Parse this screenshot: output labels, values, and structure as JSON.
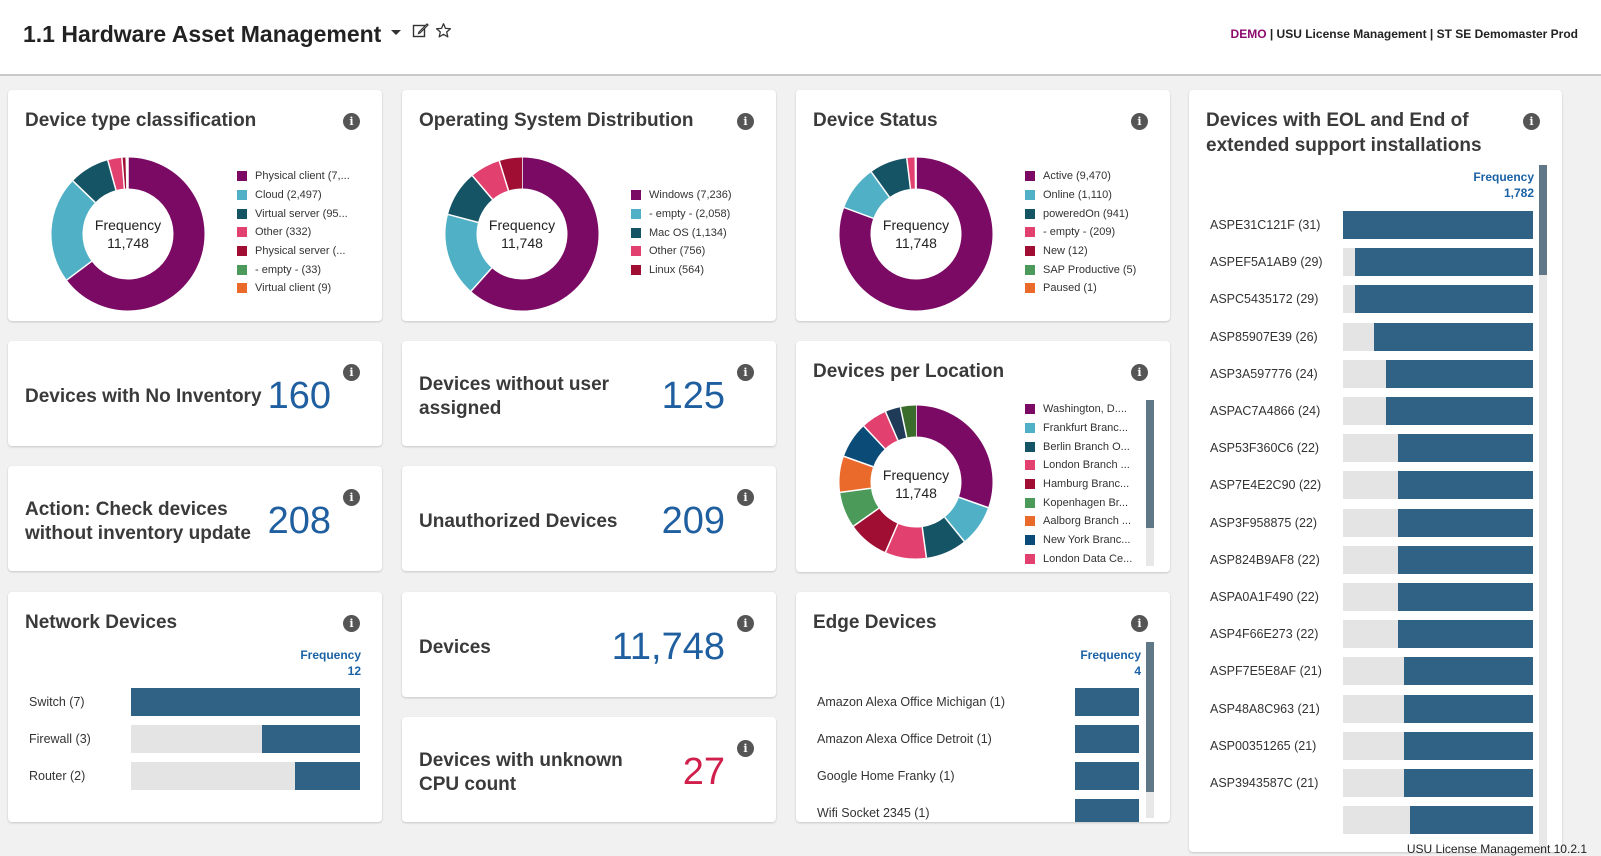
{
  "header": {
    "title": "1.1 Hardware Asset Management",
    "env_demo": "DEMO",
    "env_rest": " | USU License Management | ST SE Demomaster Prod",
    "icons": [
      "chevron-down-icon",
      "edit-icon",
      "star-icon"
    ]
  },
  "footer": "USU License Management 10.2.1",
  "device_type": {
    "title": "Device type classification",
    "center_label": "Frequency",
    "center_value": "11,748",
    "legend": [
      "Physical client (7,...",
      "Cloud (2,497)",
      "Virtual server (95...",
      "Other (332)",
      "Physical server (...",
      "- empty - (33)",
      "Virtual client (9)"
    ]
  },
  "os_dist": {
    "title": "Operating System Distribution",
    "center_label": "Frequency",
    "center_value": "11,748",
    "legend": [
      "Windows (7,236)",
      "- empty - (2,058)",
      "Mac OS (1,134)",
      "Other (756)",
      "Linux (564)"
    ]
  },
  "device_status": {
    "title": "Device Status",
    "center_label": "Frequency",
    "center_value": "11,748",
    "legend": [
      "Active (9,470)",
      "Online (1,110)",
      "poweredOn (941)",
      "- empty - (209)",
      "New (12)",
      "SAP Productive (5)",
      "Paused (1)"
    ]
  },
  "location": {
    "title": "Devices per Location",
    "center_label": "Frequency",
    "center_value": "11,748",
    "legend": [
      "Washington, D....",
      "Frankfurt Branc...",
      "Berlin Branch O...",
      "London Branch ...",
      "Hamburg Branc...",
      "Kopenhagen Br...",
      "Aalborg Branch ...",
      "New York Branc...",
      "London Data Ce..."
    ]
  },
  "kpis": {
    "no_inventory": {
      "label": "Devices with No Inventory",
      "value": "160"
    },
    "no_user": {
      "label_1": "Devices without user",
      "label_2": "assigned",
      "value": "125"
    },
    "check_inventory": {
      "label_1": "Action: Check devices",
      "label_2": "without inventory update",
      "value": "208"
    },
    "unauthorized": {
      "label": "Unauthorized Devices",
      "value": "209"
    },
    "devices": {
      "label": "Devices",
      "value": "11,748"
    },
    "unknown_cpu": {
      "label_1": "Devices with unknown",
      "label_2": "CPU count",
      "value": "27"
    }
  },
  "network": {
    "title": "Network Devices",
    "freq_label": "Frequency",
    "freq_total": "12",
    "rows": [
      {
        "label": "Switch (7)",
        "value": 7
      },
      {
        "label": "Firewall (3)",
        "value": 3
      },
      {
        "label": "Router (2)",
        "value": 2
      }
    ]
  },
  "edge": {
    "title": "Edge Devices",
    "freq_label": "Frequency",
    "freq_total": "4",
    "rows": [
      {
        "label": "Amazon Alexa Office Michigan (1)",
        "value": 1
      },
      {
        "label": "Amazon Alexa Office Detroit (1)",
        "value": 1
      },
      {
        "label": "Google Home Franky (1)",
        "value": 1
      },
      {
        "label": "Wifi Socket 2345 (1)",
        "value": 1
      }
    ]
  },
  "eol": {
    "title_1": "Devices with EOL and End of",
    "title_2": "extended support installations",
    "freq_label": "Frequency",
    "freq_total": "1,782",
    "rows": [
      {
        "label": "ASPE31C121F (31)",
        "value": 31
      },
      {
        "label": "ASPEF5A1AB9 (29)",
        "value": 29
      },
      {
        "label": "ASPC5435172 (29)",
        "value": 29
      },
      {
        "label": "ASP85907E39 (26)",
        "value": 26
      },
      {
        "label": "ASP3A597776 (24)",
        "value": 24
      },
      {
        "label": "ASPAC7A4866 (24)",
        "value": 24
      },
      {
        "label": "ASP53F360C6 (22)",
        "value": 22
      },
      {
        "label": "ASP7E4E2C90 (22)",
        "value": 22
      },
      {
        "label": "ASP3F958875 (22)",
        "value": 22
      },
      {
        "label": "ASP824B9AF8 (22)",
        "value": 22
      },
      {
        "label": "ASPA0A1F490 (22)",
        "value": 22
      },
      {
        "label": "ASP4F66E273 (22)",
        "value": 22
      },
      {
        "label": "ASPF7E5E8AF (21)",
        "value": 21
      },
      {
        "label": "ASP48A8C963 (21)",
        "value": 21
      },
      {
        "label": "ASP00351265 (21)",
        "value": 21
      },
      {
        "label": "ASP3943587C (21)",
        "value": 21
      },
      {
        "label": "",
        "value": 20
      }
    ]
  },
  "colors": {
    "purple": "#7a0a63",
    "teal": "#4fb0c6",
    "darkteal": "#155465",
    "pink": "#e2416f",
    "crimson": "#a00e33",
    "green": "#4c9a5a",
    "orange": "#ea6a2c",
    "navy": "#0b4b78",
    "darknavy": "#1f3b57",
    "olive": "#3a6d2b",
    "bar": "#2f6284",
    "kpi": "#1f5fa0",
    "kpi_red": "#d11f4b"
  }
}
